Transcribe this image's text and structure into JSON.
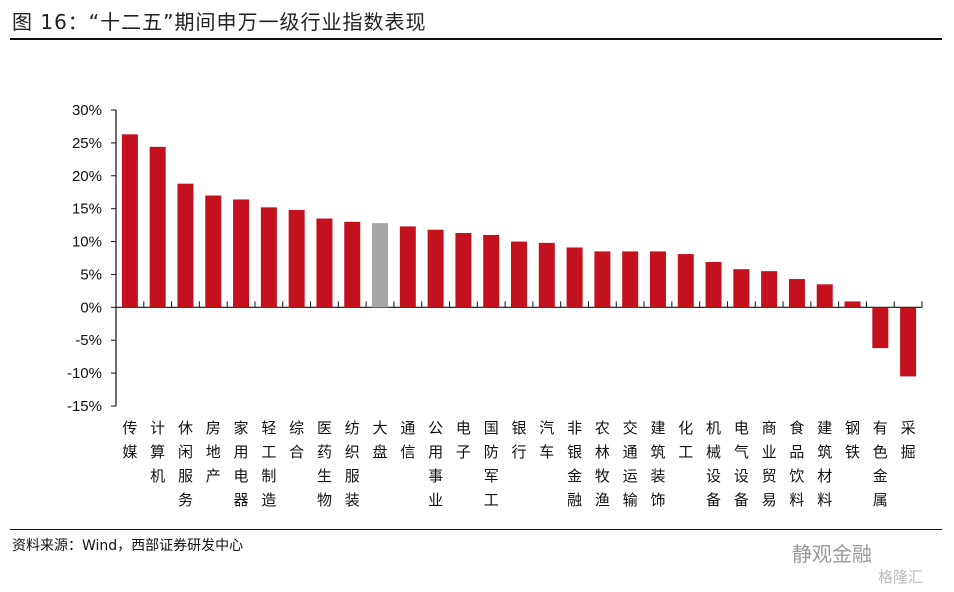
{
  "title": "图 16：“十二五”期间申万一级行业指数表现",
  "source": "资料来源：Wind，西部证券研发中心",
  "watermarks": [
    "静观金融",
    "格隆汇"
  ],
  "colors": {
    "bar": "#C3111E",
    "highlight": "#A6A6A6"
  },
  "chart_data": {
    "type": "bar",
    "title": "“十二五”期间申万一级行业指数表现",
    "xlabel": "",
    "ylabel": "",
    "ylim": [
      -15,
      30
    ],
    "yticks": [
      "30%",
      "25%",
      "20%",
      "15%",
      "10%",
      "5%",
      "0%",
      "-5%",
      "-10%",
      "-15%"
    ],
    "ytick_values": [
      30,
      25,
      20,
      15,
      10,
      5,
      0,
      -5,
      -10,
      -15
    ],
    "categories": [
      "传媒",
      "计算机",
      "休闲服务",
      "房地产",
      "家用电器",
      "轻工制造",
      "综合",
      "医药生物",
      "纺织服装",
      "大盘",
      "通信",
      "公用事业",
      "电子",
      "国防军工",
      "银行",
      "汽车",
      "非银金融",
      "农林牧渔",
      "交通运输",
      "建筑装饰",
      "化工",
      "机械设备",
      "电气设备",
      "商业贸易",
      "食品饮料",
      "建筑材料",
      "钢铁",
      "有色金属",
      "采掘"
    ],
    "values": [
      26.3,
      24.4,
      18.8,
      17.0,
      16.4,
      15.2,
      14.8,
      13.5,
      13.0,
      12.8,
      12.3,
      11.8,
      11.3,
      11.0,
      10.0,
      9.8,
      9.1,
      8.5,
      8.5,
      8.5,
      8.1,
      6.9,
      5.8,
      5.5,
      4.3,
      3.5,
      0.9,
      -6.2,
      -10.5
    ],
    "highlight": [
      "大盘"
    ],
    "grid": false,
    "legend": "none"
  }
}
